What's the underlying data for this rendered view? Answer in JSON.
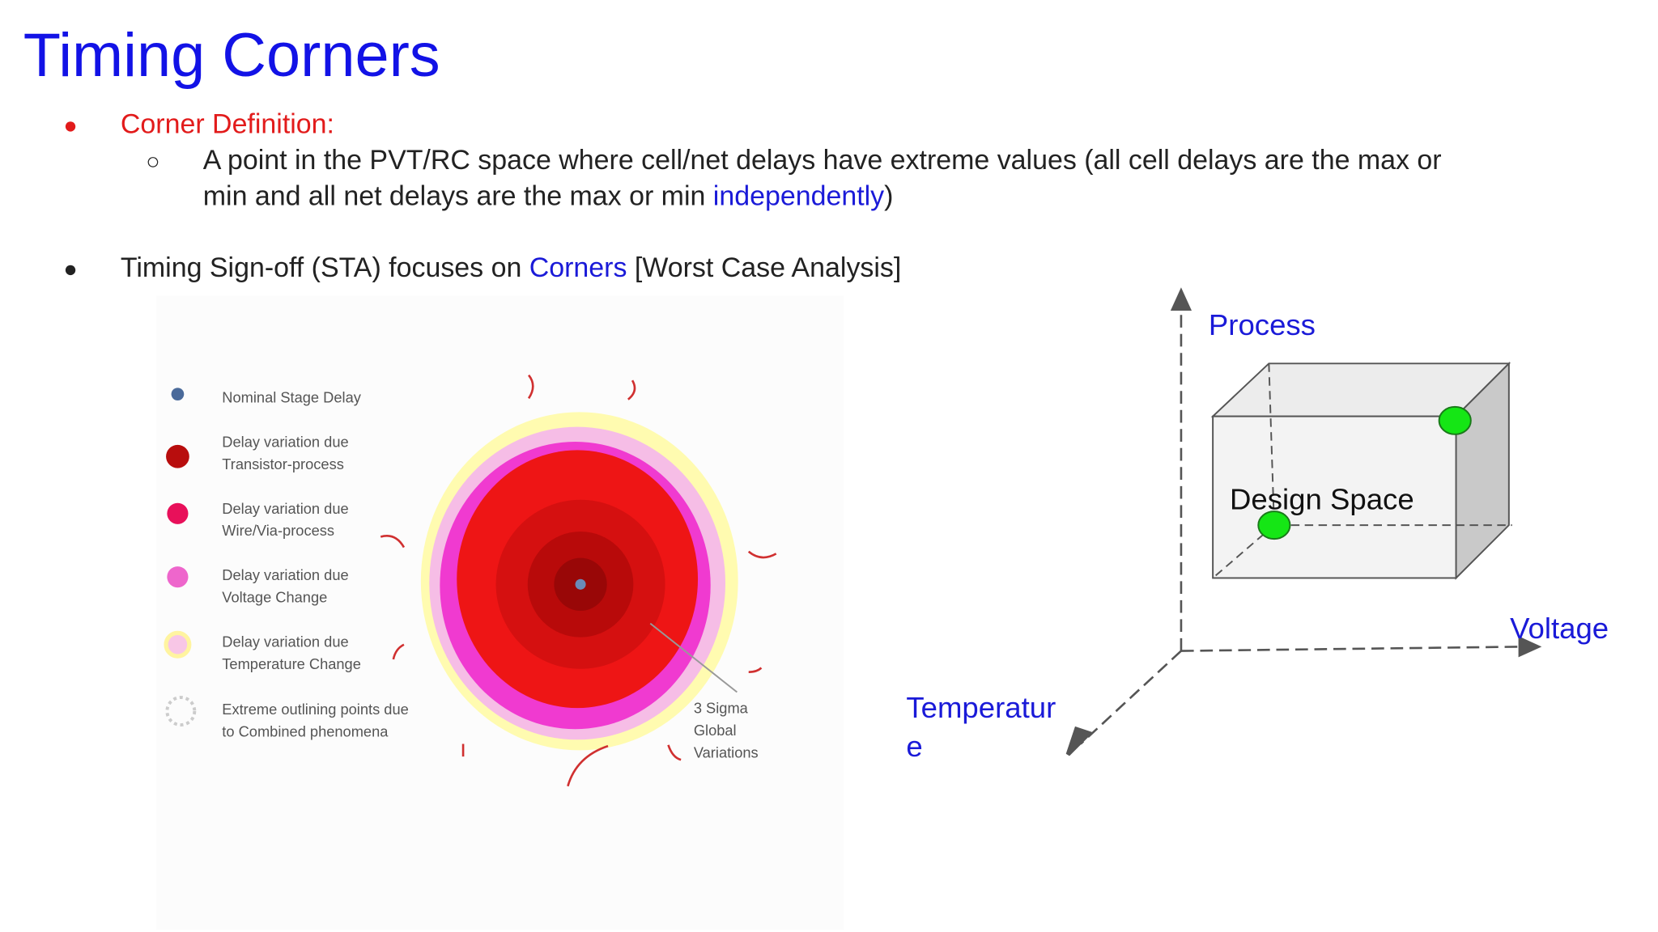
{
  "title": "Timing Corners",
  "bullets": [
    {
      "text": "Corner Definition:",
      "sub": {
        "line1": "A point in the PVT/RC space where cell/net delays have extreme values (all cell delays are the max or",
        "line2": [
          "min and all net delays are the max or min ",
          "independently",
          ")"
        ]
      }
    },
    {
      "parts": [
        "Timing Sign-off (STA) focuses on ",
        "Corners",
        " [Worst Case Analysis]"
      ]
    }
  ],
  "figure": {
    "legend": [
      {
        "lines": [
          "Nominal Stage Delay"
        ]
      },
      {
        "lines": [
          "Delay variation due",
          "Transistor-process"
        ]
      },
      {
        "lines": [
          "Delay variation due",
          "Wire/Via-process"
        ]
      },
      {
        "lines": [
          "Delay variation due",
          "Voltage Change"
        ]
      },
      {
        "lines": [
          "Delay variation due",
          "Temperature Change"
        ]
      },
      {
        "lines": [
          "Extreme outlining points due",
          "to Combined phenomena"
        ]
      }
    ],
    "annotation": [
      "3 Sigma",
      "Global",
      "Variations"
    ]
  },
  "diagram": {
    "process": "Process",
    "voltage": "Voltage",
    "temperature": [
      "Temperatur",
      "e"
    ],
    "box": "Design Space"
  }
}
